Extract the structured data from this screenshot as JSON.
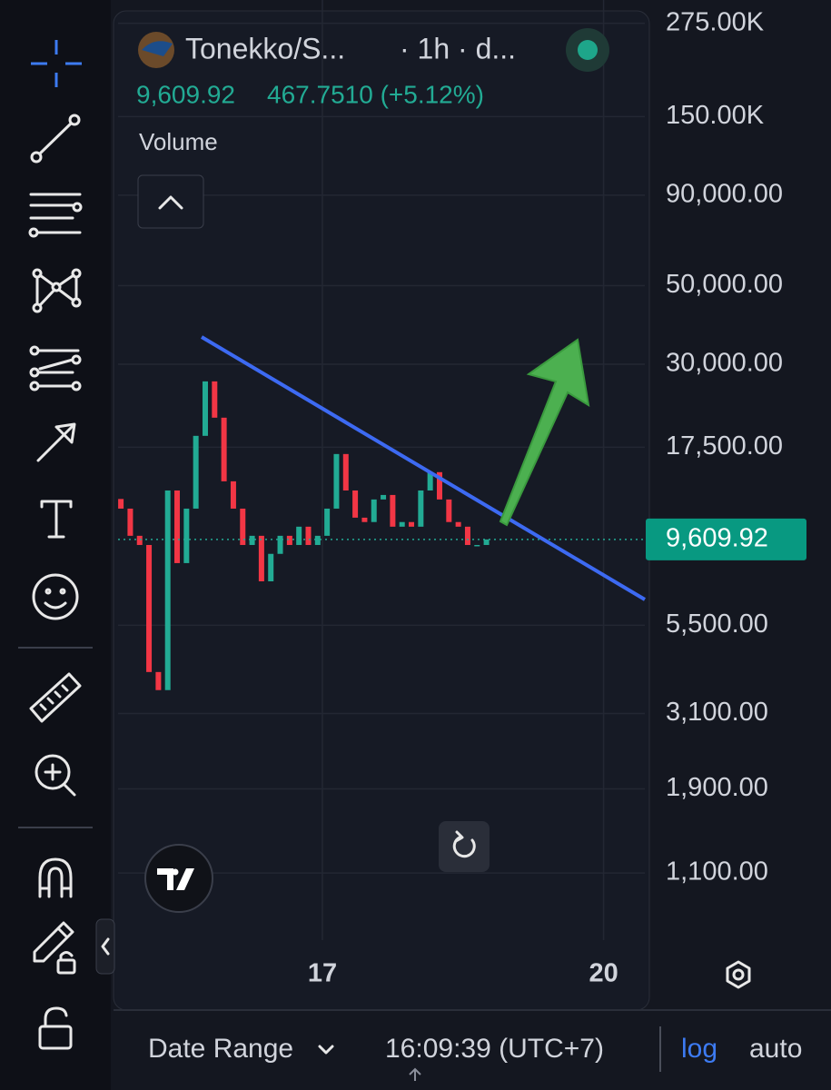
{
  "header": {
    "symbol": "Tonekko/S...",
    "interval": "· 1h · d...",
    "price": "9,609.92",
    "change": "467.7510 (+5.12%)",
    "volume_label": "Volume"
  },
  "chart_data": {
    "type": "candlestick",
    "x": [
      14.85,
      14.95,
      15.05,
      15.15,
      15.25,
      15.35,
      15.45,
      15.55,
      15.65,
      15.75,
      15.85,
      15.95,
      16.05,
      16.15,
      16.25,
      16.35,
      16.45,
      16.55,
      16.65,
      16.75,
      16.85,
      16.95,
      17.05,
      17.15,
      17.25,
      17.35,
      17.45,
      17.55,
      17.65,
      17.75,
      17.85,
      17.95,
      18.05,
      18.15,
      18.25,
      18.35,
      18.45,
      18.55,
      18.65,
      18.75
    ],
    "open": [
      12500,
      11740,
      9840,
      9270,
      4060,
      3610,
      13210,
      8240,
      11740,
      18840,
      26840,
      21200,
      14020,
      11740,
      9270,
      9840,
      7320,
      8750,
      9840,
      9270,
      10440,
      9270,
      9840,
      11740,
      16740,
      13210,
      11070,
      10760,
      12460,
      12830,
      10440,
      10760,
      10440,
      13210,
      14880,
      12460,
      10760,
      10440,
      9270,
      9270
    ],
    "close": [
      11740,
      9840,
      9270,
      4060,
      3610,
      13210,
      8240,
      11740,
      18840,
      26840,
      21200,
      14020,
      11740,
      9270,
      9840,
      7320,
      8750,
      9840,
      9270,
      10440,
      9270,
      9840,
      11740,
      16740,
      13210,
      11070,
      10760,
      12460,
      12830,
      10440,
      10760,
      10440,
      13210,
      14880,
      12460,
      10760,
      10440,
      9270,
      9270,
      9609.92
    ],
    "up_color": "#22ab94",
    "down_color": "#f23645",
    "log_scale": true,
    "grid": true,
    "ylim": [
      711,
      320000
    ],
    "yticks": [
      {
        "value": 275000,
        "label": "275.00K"
      },
      {
        "value": 150000,
        "label": "150.00K"
      },
      {
        "value": 90000,
        "label": "90,000.00"
      },
      {
        "value": 50000,
        "label": "50,000.00"
      },
      {
        "value": 30000,
        "label": "30,000.00"
      },
      {
        "value": 17500,
        "label": "17,500.00"
      },
      {
        "value": 5500,
        "label": "5,500.00"
      },
      {
        "value": 3100,
        "label": "3,100.00"
      },
      {
        "value": 1900,
        "label": "1,900.00"
      },
      {
        "value": 1100,
        "label": "1,100.00"
      }
    ],
    "xlim": [
      14.82,
      20.44
    ],
    "xticks": [
      17,
      20
    ],
    "last_price": {
      "value": 9609.92,
      "label": "9,609.92"
    }
  },
  "footer": {
    "date_range": "Date Range",
    "time": "16:09:39 (UTC+7)",
    "log": "log",
    "auto": "auto"
  }
}
